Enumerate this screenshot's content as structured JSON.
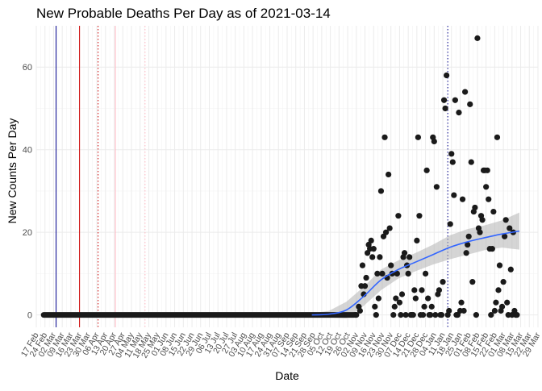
{
  "chart_data": {
    "type": "scatter",
    "title": "New Probable Deaths Per Day as of 2021-03-14",
    "xlabel": "Date",
    "ylabel": "New Counts Per Day",
    "xlim": [
      "2020-02-17",
      "2021-03-29"
    ],
    "ylim": [
      -3,
      70
    ],
    "y_ticks": [
      0,
      20,
      40,
      60
    ],
    "x_ticks": [
      "2020-02-17",
      "2020-02-24",
      "2020-03-02",
      "2020-03-09",
      "2020-03-16",
      "2020-03-23",
      "2020-03-30",
      "2020-04-06",
      "2020-04-13",
      "2020-04-20",
      "2020-04-27",
      "2020-05-04",
      "2020-05-11",
      "2020-05-18",
      "2020-05-25",
      "2020-06-01",
      "2020-06-08",
      "2020-06-15",
      "2020-06-22",
      "2020-06-29",
      "2020-07-06",
      "2020-07-13",
      "2020-07-20",
      "2020-07-27",
      "2020-08-03",
      "2020-08-10",
      "2020-08-17",
      "2020-08-24",
      "2020-08-31",
      "2020-09-07",
      "2020-09-14",
      "2020-09-21",
      "2020-09-28",
      "2020-10-05",
      "2020-10-12",
      "2020-10-19",
      "2020-10-26",
      "2020-11-02",
      "2020-11-09",
      "2020-11-16",
      "2020-11-23",
      "2020-11-30",
      "2020-12-07",
      "2020-12-14",
      "2020-12-21",
      "2020-12-28",
      "2021-01-04",
      "2021-01-11",
      "2021-01-18",
      "2021-01-25",
      "2021-02-01",
      "2021-02-08",
      "2021-02-15",
      "2021-02-22",
      "2021-03-01",
      "2021-03-08",
      "2021-03-15",
      "2021-03-22",
      "2021-03-29"
    ],
    "x_tick_labels": [
      "17 Feb",
      "24 Feb",
      "02 Mar",
      "09 Mar",
      "16 Mar",
      "23 Mar",
      "30 Mar",
      "06 Apr",
      "13 Apr",
      "20 Apr",
      "27 Apr",
      "04 May",
      "11 May",
      "18 May",
      "25 May",
      "01 Jun",
      "08 Jun",
      "15 Jun",
      "22 Jun",
      "29 Jun",
      "06 Jul",
      "13 Jul",
      "20 Jul",
      "27 Jul",
      "03 Aug",
      "10 Aug",
      "17 Aug",
      "24 Aug",
      "31 Aug",
      "07 Sep",
      "14 Sep",
      "21 Sep",
      "28 Sep",
      "05 Oct",
      "12 Oct",
      "19 Oct",
      "26 Oct",
      "02 Nov",
      "09 Nov",
      "16 Nov",
      "23 Nov",
      "30 Nov",
      "07 Dec",
      "14 Dec",
      "21 Dec",
      "28 Dec",
      "04 Jan",
      "11 Jan",
      "18 Jan",
      "25 Jan",
      "01 Feb",
      "08 Feb",
      "15 Feb",
      "22 Feb",
      "01 Mar",
      "08 Mar",
      "15 Mar",
      "22 Mar",
      "29 Mar"
    ],
    "grid": true,
    "vlines": [
      {
        "date": "2020-03-04",
        "color": "#00008b",
        "style": "solid"
      },
      {
        "date": "2020-03-23",
        "color": "#cc0000",
        "style": "solid"
      },
      {
        "date": "2020-04-07",
        "color": "#cc0000",
        "style": "dotted"
      },
      {
        "date": "2020-04-21",
        "color": "#ffb6c1",
        "style": "solid"
      },
      {
        "date": "2020-05-15",
        "color": "#ffb6c1",
        "style": "dotted"
      },
      {
        "date": "2021-01-15",
        "color": "#00008b",
        "style": "dotted"
      }
    ],
    "points": {
      "color": "#1a1a1a",
      "zero_run": [
        "2020-02-23",
        "2020-10-31"
      ],
      "x": [
        "2020-11-01",
        "2020-11-02",
        "2020-11-04",
        "2020-11-05",
        "2020-11-06",
        "2020-11-07",
        "2020-11-08",
        "2020-11-09",
        "2020-11-10",
        "2020-11-11",
        "2020-11-12",
        "2020-11-13",
        "2020-11-14",
        "2020-11-15",
        "2020-11-16",
        "2020-11-17",
        "2020-11-18",
        "2020-11-19",
        "2020-11-20",
        "2020-11-21",
        "2020-11-22",
        "2020-11-23",
        "2020-11-24",
        "2020-11-25",
        "2020-11-26",
        "2020-11-27",
        "2020-11-28",
        "2020-11-29",
        "2020-11-30",
        "2020-12-01",
        "2020-12-02",
        "2020-12-03",
        "2020-12-04",
        "2020-12-05",
        "2020-12-06",
        "2020-12-07",
        "2020-12-08",
        "2020-12-09",
        "2020-12-10",
        "2020-12-11",
        "2020-12-12",
        "2020-12-13",
        "2020-12-14",
        "2020-12-15",
        "2020-12-16",
        "2020-12-17",
        "2020-12-18",
        "2020-12-19",
        "2020-12-20",
        "2020-12-21",
        "2020-12-22",
        "2020-12-23",
        "2020-12-24",
        "2020-12-25",
        "2020-12-26",
        "2020-12-27",
        "2020-12-28",
        "2020-12-29",
        "2020-12-30",
        "2020-12-31",
        "2021-01-01",
        "2021-01-02",
        "2021-01-03",
        "2021-01-04",
        "2021-01-05",
        "2021-01-06",
        "2021-01-07",
        "2021-01-08",
        "2021-01-09",
        "2021-01-10",
        "2021-01-11",
        "2021-01-12",
        "2021-01-13",
        "2021-01-14",
        "2021-01-15",
        "2021-01-16",
        "2021-01-17",
        "2021-01-18",
        "2021-01-19",
        "2021-01-20",
        "2021-01-21",
        "2021-01-22",
        "2021-01-23",
        "2021-01-24",
        "2021-01-25",
        "2021-01-26",
        "2021-01-27",
        "2021-01-28",
        "2021-01-29",
        "2021-01-30",
        "2021-01-31",
        "2021-02-01",
        "2021-02-02",
        "2021-02-03",
        "2021-02-04",
        "2021-02-05",
        "2021-02-06",
        "2021-02-07",
        "2021-02-08",
        "2021-02-09",
        "2021-02-10",
        "2021-02-11",
        "2021-02-12",
        "2021-02-13",
        "2021-02-14",
        "2021-02-15",
        "2021-02-16",
        "2021-02-17",
        "2021-02-18",
        "2021-02-19",
        "2021-02-20",
        "2021-02-21",
        "2021-02-22",
        "2021-02-23",
        "2021-02-24",
        "2021-02-25",
        "2021-02-26",
        "2021-02-27",
        "2021-02-28",
        "2021-03-01",
        "2021-03-02",
        "2021-03-03",
        "2021-03-04",
        "2021-03-05",
        "2021-03-06",
        "2021-03-07",
        "2021-03-08",
        "2021-03-09",
        "2021-03-10",
        "2021-03-11",
        "2021-03-12"
      ],
      "y": [
        0,
        0,
        2,
        1,
        7,
        12,
        5,
        7,
        9,
        15,
        17,
        16,
        18,
        14,
        16,
        2,
        0,
        10,
        4,
        14,
        30,
        10,
        19,
        43,
        20,
        9,
        34,
        21,
        12,
        10,
        0,
        2,
        4,
        10,
        24,
        3,
        0,
        5,
        14,
        15,
        0,
        12,
        10,
        14,
        0,
        0,
        0,
        6,
        4,
        18,
        43,
        24,
        0,
        6,
        0,
        2,
        10,
        35,
        4,
        0,
        0,
        2,
        43,
        42,
        0,
        31,
        5,
        6,
        0,
        0,
        8,
        52,
        50,
        58,
        0,
        1,
        22,
        39,
        37,
        29,
        52,
        0,
        0,
        49,
        1,
        3,
        28,
        1,
        54,
        15,
        17,
        19,
        51,
        37,
        8,
        25,
        26,
        0,
        67,
        21,
        20,
        24,
        23,
        35,
        35,
        31,
        35,
        28,
        16,
        0,
        16,
        25,
        1,
        3,
        43,
        6,
        12,
        1,
        2,
        8,
        19,
        23,
        3,
        0,
        21,
        11,
        0,
        20,
        1,
        0,
        0
      ]
    },
    "trend": {
      "color": "#3366ff",
      "band_color": "#b3b3b3",
      "x": [
        "2020-09-27",
        "2020-10-11",
        "2020-10-25",
        "2020-11-08",
        "2020-11-22",
        "2020-12-06",
        "2020-12-20",
        "2021-01-03",
        "2021-01-17",
        "2021-01-31",
        "2021-02-14",
        "2021-02-28",
        "2021-03-14"
      ],
      "y": [
        0,
        0.2,
        1.2,
        4.5,
        8.5,
        11.0,
        12.8,
        14.6,
        16.4,
        17.7,
        18.7,
        19.6,
        20.3
      ],
      "upper": [
        0.4,
        1.0,
        3.2,
        6.8,
        11.0,
        13.2,
        15.0,
        17.0,
        19.3,
        20.8,
        21.7,
        22.9,
        24.8
      ],
      "lower": [
        -0.4,
        -0.6,
        -0.8,
        2.2,
        6.0,
        8.8,
        10.6,
        12.2,
        13.5,
        14.6,
        15.7,
        16.3,
        15.8
      ]
    }
  }
}
